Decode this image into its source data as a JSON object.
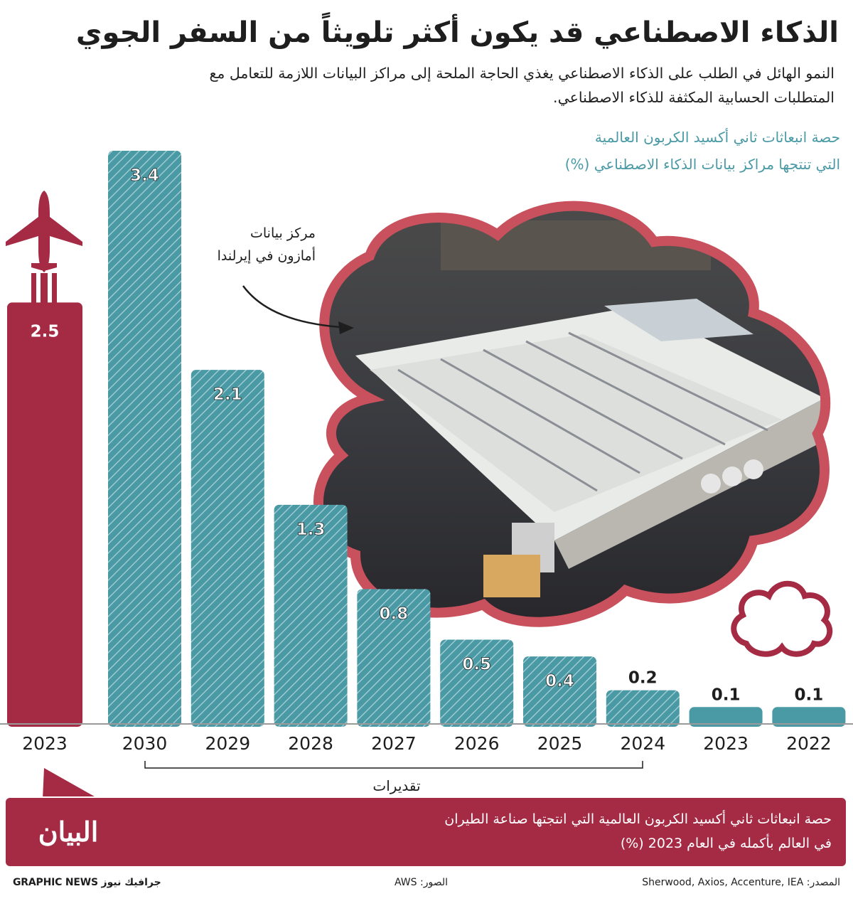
{
  "title": "الذكاء الاصطناعي قد يكون أكثر تلويثاً من السفر الجوي",
  "subtitle": "النمو الهائل في الطلب على الذكاء الاصطناعي يغذي الحاجة الملحة إلى مراكز البيانات اللازمة للتعامل مع المتطلبات الحسابية المكثفة للذكاء الاصطناعي.",
  "caption_line1": "حصة انبعاثات ثاني أكسيد الكربون العالمية",
  "caption_line2": "التي تنتجها مراكز بيانات الذكاء الاصطناعي (%)",
  "callout_line1": "مركز بيانات",
  "callout_line2": "أمازون في إيرلندا",
  "banner_line1": "حصة انبعاثات ثاني أكسيد الكربون العالمية التي انتجتها صناعة الطيران",
  "banner_line2": "في العالم بأكمله في العام 2023 (%)",
  "logo_text": "البيان",
  "footer_source": "المصدر: Sherwood, Axios, Accenture, IEA",
  "footer_photos": "الصور: AWS",
  "footer_credit": "GRAPHIC NEWS جرافيك نيوز",
  "colors": {
    "teal": "#4a9aa6",
    "maroon": "#a52a44",
    "cloud_fill": "#3a3a3a",
    "estimate_stripes": "#ffffff"
  },
  "icons": [
    "airplane-icon",
    "cloud-icon",
    "datacenter-photo"
  ],
  "chart_data": [
    {
      "type": "bar",
      "label": "حصة انبعاثات ثاني أكسيد الكربون العالمية التي تنتجها مراكز بيانات الذكاء الاصطناعي (%)",
      "categories": [
        "2030",
        "2029",
        "2028",
        "2027",
        "2026",
        "2025",
        "2024",
        "2023",
        "2022"
      ],
      "values": [
        3.4,
        2.1,
        1.3,
        0.8,
        0.5,
        0.4,
        0.2,
        0.1,
        0.1
      ],
      "estimated": [
        true,
        true,
        true,
        true,
        true,
        true,
        true,
        false,
        false
      ],
      "estimate_label": "تقديرات",
      "color": "#4a9aa6",
      "ylim": [
        0,
        3.4
      ]
    },
    {
      "type": "bar",
      "label": "حصة انبعاثات ثاني أكسيد الكربون العالمية التي انتجتها صناعة الطيران في العالم بأكمله في العام 2023 (%)",
      "categories": [
        "2023"
      ],
      "values": [
        2.5
      ],
      "color": "#a52a44",
      "ylim": [
        0,
        3.4
      ]
    }
  ]
}
